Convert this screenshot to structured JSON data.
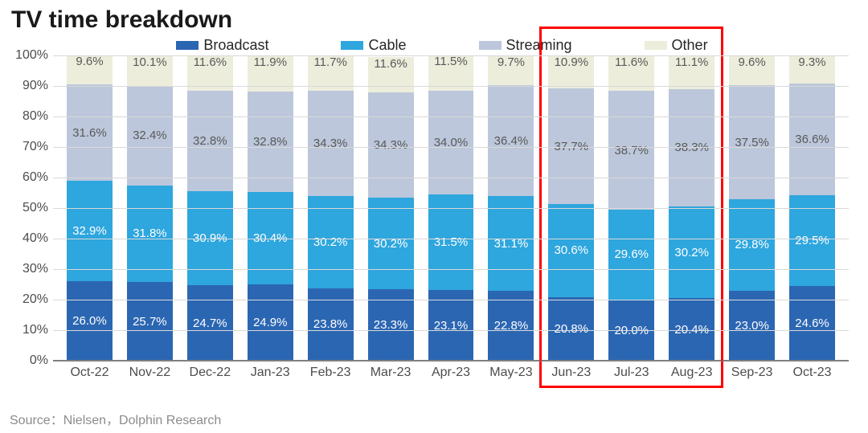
{
  "title": "TV time breakdown",
  "source": "Source：Nielsen，Dolphin Research",
  "chart": {
    "type": "stacked-bar-100",
    "categories": [
      "Oct-22",
      "Nov-22",
      "Dec-22",
      "Jan-23",
      "Feb-23",
      "Mar-23",
      "Apr-23",
      "May-23",
      "Jun-23",
      "Jul-23",
      "Aug-23",
      "Sep-23",
      "Oct-23"
    ],
    "series": [
      {
        "name": "Broadcast",
        "color": "#2b66b2",
        "text": "#ffffff",
        "values": [
          26.0,
          25.7,
          24.7,
          24.9,
          23.8,
          23.3,
          23.1,
          22.8,
          20.8,
          20.0,
          20.4,
          23.0,
          24.6
        ]
      },
      {
        "name": "Cable",
        "color": "#2ea6de",
        "text": "#ffffff",
        "values": [
          32.9,
          31.8,
          30.9,
          30.4,
          30.2,
          30.2,
          31.5,
          31.1,
          30.6,
          29.6,
          30.2,
          29.8,
          29.5
        ]
      },
      {
        "name": "Streaming",
        "color": "#bcc7db",
        "text": "#595959",
        "values": [
          31.6,
          32.4,
          32.8,
          32.8,
          34.3,
          34.3,
          34.0,
          36.4,
          37.7,
          38.7,
          38.3,
          37.5,
          36.6
        ]
      },
      {
        "name": "Other",
        "color": "#eceddb",
        "text": "#595959",
        "values": [
          9.6,
          10.1,
          11.6,
          11.9,
          11.7,
          11.6,
          11.5,
          9.7,
          10.9,
          11.6,
          11.1,
          9.6,
          9.3
        ]
      }
    ],
    "y": {
      "min": 0,
      "max": 100,
      "step": 10,
      "suffix": "%",
      "grid_color": "#d9d9d9",
      "axis_color": "#7f7f7f"
    },
    "label_fontsize": 15,
    "tick_fontsize": 16,
    "bar_width_ratio": 0.76,
    "background_color": "#ffffff",
    "highlight": {
      "from_index": 8,
      "to_index": 10,
      "color": "#ff0000",
      "stroke": 3
    }
  },
  "legend": [
    {
      "label": "Broadcast",
      "color": "#2b66b2"
    },
    {
      "label": "Cable",
      "color": "#2ea6de"
    },
    {
      "label": "Streaming",
      "color": "#bcc7db"
    },
    {
      "label": "Other",
      "color": "#eceddb"
    }
  ]
}
